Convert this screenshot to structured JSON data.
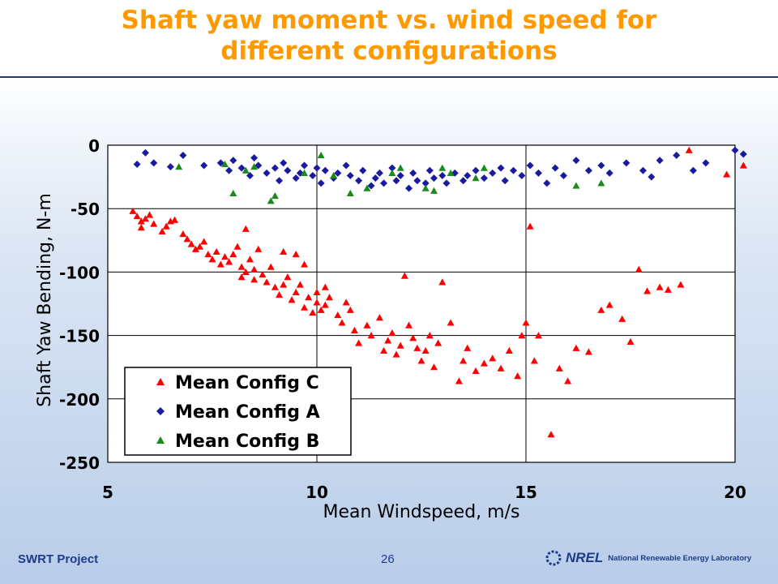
{
  "slide": {
    "title_line1": "Shaft yaw moment vs. wind speed for",
    "title_line2": "different configurations",
    "footer_left": "SWRT Project",
    "page_number": "26",
    "logo_mark": "NREL",
    "logo_text": "National Renewable Energy Laboratory",
    "title_color": "#ff9900",
    "text_color": "#1f3a8a"
  },
  "chart_data": {
    "type": "scatter",
    "title": "",
    "xlabel": "Mean Windspeed, m/s",
    "ylabel": "Shaft Yaw Bending, N-m",
    "xlim": [
      5,
      20
    ],
    "ylim": [
      -250,
      0
    ],
    "xticks": [
      "5",
      "10",
      "15",
      "20"
    ],
    "yticks": [
      "0",
      "-50",
      "-100",
      "-150",
      "-200",
      "-250"
    ],
    "grid": true,
    "legend_position": "bottom-left",
    "series": [
      {
        "name": "Mean Config C",
        "marker": "triangle",
        "color": "#ff0000",
        "points": [
          [
            5.6,
            -52
          ],
          [
            5.7,
            -56
          ],
          [
            5.8,
            -60
          ],
          [
            5.9,
            -58
          ],
          [
            5.8,
            -65
          ],
          [
            6.0,
            -55
          ],
          [
            6.1,
            -62
          ],
          [
            6.3,
            -68
          ],
          [
            6.4,
            -64
          ],
          [
            6.5,
            -60
          ],
          [
            6.6,
            -59
          ],
          [
            6.8,
            -70
          ],
          [
            6.9,
            -74
          ],
          [
            7.0,
            -78
          ],
          [
            7.1,
            -82
          ],
          [
            7.2,
            -80
          ],
          [
            7.3,
            -76
          ],
          [
            7.4,
            -86
          ],
          [
            7.5,
            -90
          ],
          [
            7.6,
            -84
          ],
          [
            7.7,
            -94
          ],
          [
            7.8,
            -88
          ],
          [
            7.9,
            -92
          ],
          [
            8.0,
            -86
          ],
          [
            8.1,
            -80
          ],
          [
            8.2,
            -96
          ],
          [
            8.2,
            -104
          ],
          [
            8.3,
            -100
          ],
          [
            8.3,
            -66
          ],
          [
            8.4,
            -90
          ],
          [
            8.5,
            -106
          ],
          [
            8.5,
            -98
          ],
          [
            8.6,
            -82
          ],
          [
            8.7,
            -102
          ],
          [
            8.8,
            -108
          ],
          [
            8.9,
            -96
          ],
          [
            9.0,
            -112
          ],
          [
            9.1,
            -118
          ],
          [
            9.2,
            -110
          ],
          [
            9.2,
            -84
          ],
          [
            9.3,
            -104
          ],
          [
            9.4,
            -122
          ],
          [
            9.5,
            -116
          ],
          [
            9.5,
            -86
          ],
          [
            9.6,
            -110
          ],
          [
            9.7,
            -128
          ],
          [
            9.7,
            -94
          ],
          [
            9.8,
            -120
          ],
          [
            9.9,
            -132
          ],
          [
            10.0,
            -124
          ],
          [
            10.0,
            -116
          ],
          [
            10.1,
            -130
          ],
          [
            10.2,
            -126
          ],
          [
            10.2,
            -112
          ],
          [
            10.3,
            -120
          ],
          [
            10.5,
            -134
          ],
          [
            10.6,
            -140
          ],
          [
            10.7,
            -124
          ],
          [
            10.8,
            -130
          ],
          [
            10.9,
            -146
          ],
          [
            11.0,
            -156
          ],
          [
            11.2,
            -142
          ],
          [
            11.3,
            -150
          ],
          [
            11.5,
            -136
          ],
          [
            11.6,
            -162
          ],
          [
            11.7,
            -154
          ],
          [
            11.8,
            -148
          ],
          [
            11.9,
            -165
          ],
          [
            12.0,
            -158
          ],
          [
            12.1,
            -103
          ],
          [
            12.2,
            -142
          ],
          [
            12.3,
            -152
          ],
          [
            12.4,
            -160
          ],
          [
            12.5,
            -170
          ],
          [
            12.6,
            -162
          ],
          [
            12.7,
            -150
          ],
          [
            12.8,
            -175
          ],
          [
            12.9,
            -156
          ],
          [
            13.0,
            -108
          ],
          [
            13.2,
            -140
          ],
          [
            13.4,
            -186
          ],
          [
            13.5,
            -170
          ],
          [
            13.6,
            -160
          ],
          [
            13.8,
            -178
          ],
          [
            14.0,
            -172
          ],
          [
            14.2,
            -168
          ],
          [
            14.4,
            -176
          ],
          [
            14.6,
            -162
          ],
          [
            14.8,
            -182
          ],
          [
            14.9,
            -150
          ],
          [
            15.0,
            -140
          ],
          [
            15.1,
            -64
          ],
          [
            15.2,
            -170
          ],
          [
            15.3,
            -150
          ],
          [
            15.6,
            -228
          ],
          [
            15.8,
            -176
          ],
          [
            16.0,
            -186
          ],
          [
            16.2,
            -160
          ],
          [
            16.5,
            -163
          ],
          [
            16.8,
            -130
          ],
          [
            17.0,
            -126
          ],
          [
            17.3,
            -137
          ],
          [
            17.5,
            -155
          ],
          [
            17.7,
            -98
          ],
          [
            18.2,
            -112
          ],
          [
            18.7,
            -110
          ],
          [
            17.9,
            -115
          ],
          [
            18.4,
            -114
          ],
          [
            18.9,
            -4
          ],
          [
            19.8,
            -23
          ],
          [
            20.2,
            -16
          ]
        ]
      },
      {
        "name": "Mean Config A",
        "marker": "diamond",
        "color": "#1a1aa0",
        "points": [
          [
            5.7,
            -15
          ],
          [
            5.9,
            -6
          ],
          [
            6.1,
            -14
          ],
          [
            6.5,
            -17
          ],
          [
            6.8,
            -8
          ],
          [
            7.3,
            -16
          ],
          [
            7.7,
            -14
          ],
          [
            7.9,
            -20
          ],
          [
            8.0,
            -12
          ],
          [
            8.2,
            -18
          ],
          [
            8.4,
            -24
          ],
          [
            8.5,
            -10
          ],
          [
            8.6,
            -16
          ],
          [
            8.8,
            -22
          ],
          [
            9.0,
            -18
          ],
          [
            9.1,
            -28
          ],
          [
            9.2,
            -14
          ],
          [
            9.3,
            -20
          ],
          [
            9.5,
            -26
          ],
          [
            9.6,
            -22
          ],
          [
            9.7,
            -16
          ],
          [
            9.9,
            -24
          ],
          [
            10.0,
            -18
          ],
          [
            10.1,
            -30
          ],
          [
            10.2,
            -20
          ],
          [
            10.4,
            -26
          ],
          [
            10.5,
            -22
          ],
          [
            10.7,
            -16
          ],
          [
            10.8,
            -24
          ],
          [
            11.0,
            -28
          ],
          [
            11.1,
            -20
          ],
          [
            11.3,
            -32
          ],
          [
            11.4,
            -26
          ],
          [
            11.5,
            -22
          ],
          [
            11.6,
            -30
          ],
          [
            11.8,
            -18
          ],
          [
            11.9,
            -28
          ],
          [
            12.0,
            -24
          ],
          [
            12.2,
            -34
          ],
          [
            12.3,
            -22
          ],
          [
            12.4,
            -28
          ],
          [
            12.6,
            -30
          ],
          [
            12.7,
            -20
          ],
          [
            12.8,
            -26
          ],
          [
            13.0,
            -24
          ],
          [
            13.1,
            -30
          ],
          [
            13.3,
            -22
          ],
          [
            13.5,
            -28
          ],
          [
            13.6,
            -24
          ],
          [
            13.8,
            -20
          ],
          [
            14.0,
            -26
          ],
          [
            14.2,
            -22
          ],
          [
            14.4,
            -18
          ],
          [
            14.5,
            -28
          ],
          [
            14.7,
            -20
          ],
          [
            14.9,
            -24
          ],
          [
            15.1,
            -16
          ],
          [
            15.3,
            -22
          ],
          [
            15.5,
            -30
          ],
          [
            15.7,
            -18
          ],
          [
            15.9,
            -24
          ],
          [
            16.2,
            -12
          ],
          [
            16.5,
            -20
          ],
          [
            16.8,
            -16
          ],
          [
            17.0,
            -22
          ],
          [
            17.4,
            -14
          ],
          [
            17.8,
            -20
          ],
          [
            18.0,
            -25
          ],
          [
            18.2,
            -12
          ],
          [
            18.6,
            -8
          ],
          [
            19.0,
            -20
          ],
          [
            19.3,
            -14
          ],
          [
            20.0,
            -4
          ],
          [
            20.2,
            -7
          ]
        ]
      },
      {
        "name": "Mean Config B",
        "marker": "triangle",
        "color": "#1a8a1a",
        "points": [
          [
            6.7,
            -17
          ],
          [
            7.8,
            -15
          ],
          [
            8.0,
            -38
          ],
          [
            8.3,
            -20
          ],
          [
            8.5,
            -17
          ],
          [
            8.9,
            -44
          ],
          [
            9.0,
            -40
          ],
          [
            9.7,
            -22
          ],
          [
            10.1,
            -8
          ],
          [
            10.4,
            -24
          ],
          [
            10.8,
            -38
          ],
          [
            11.2,
            -34
          ],
          [
            11.8,
            -22
          ],
          [
            12.0,
            -18
          ],
          [
            12.6,
            -34
          ],
          [
            12.8,
            -36
          ],
          [
            13.0,
            -18
          ],
          [
            13.2,
            -22
          ],
          [
            13.8,
            -26
          ],
          [
            14.0,
            -18
          ],
          [
            16.2,
            -32
          ],
          [
            16.8,
            -30
          ]
        ]
      }
    ]
  }
}
